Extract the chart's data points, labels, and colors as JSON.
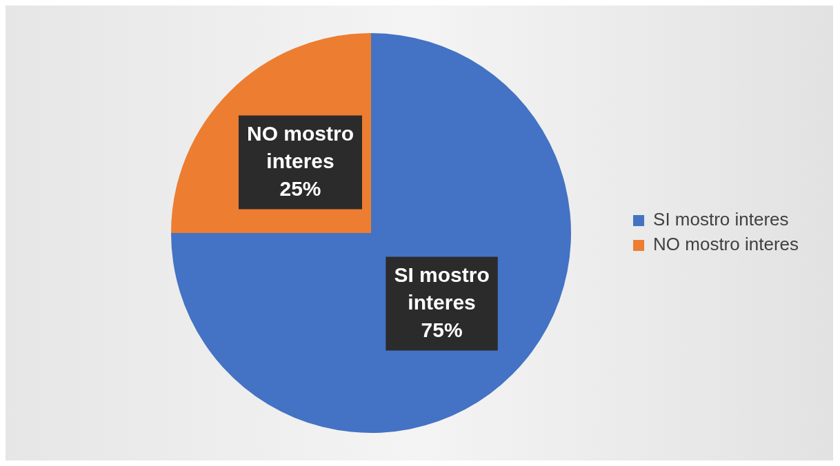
{
  "chart_data": {
    "type": "pie",
    "categories": [
      "SI mostro interes",
      "NO mostro interes"
    ],
    "values": [
      75,
      25
    ],
    "colors": [
      "#4472c4",
      "#ed7d31"
    ],
    "value_labels": [
      "75%",
      "25%"
    ],
    "legend": "right"
  }
}
